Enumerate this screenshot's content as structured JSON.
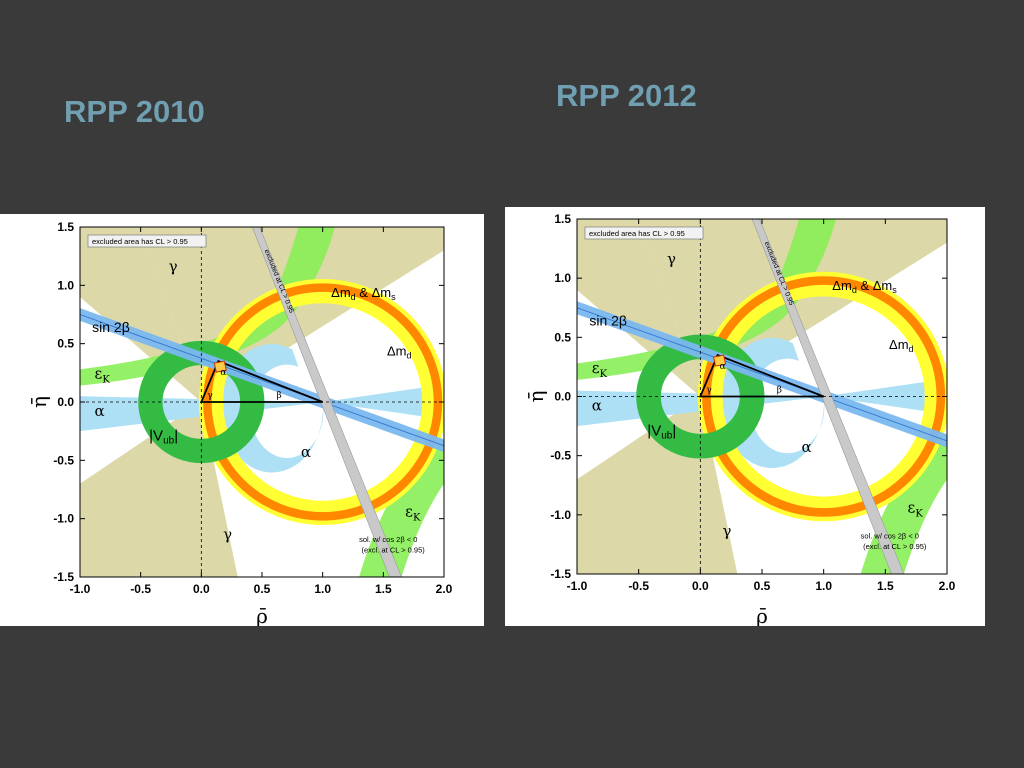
{
  "slide": {
    "background": "#3a3a3a",
    "title_color": "#6f9fb1"
  },
  "plots": [
    {
      "title": "RPP 2010",
      "x_ticks": [
        "-1.0",
        "-0.5",
        "0.0",
        "0.5",
        "1.0",
        "1.5",
        "2.0"
      ],
      "y_ticks": [
        "1.5",
        "1.0",
        "0.5",
        "0.0",
        "-0.5",
        "-1.0",
        "-1.5"
      ],
      "xlabel": "ρ̄",
      "ylabel": "η̄",
      "legend_box": "excluded area has CL > 0.95",
      "labels": {
        "gamma_top": "γ",
        "gamma_bottom": "γ",
        "dmd_dms": "Δm",
        "dmd_dms_sub1": "d",
        "dmd_amp": " & Δm",
        "dmd_dms_sub2": "s",
        "dmd": "Δm",
        "dmd_sub": "d",
        "sin2b": "sin 2β",
        "epsk": "ε",
        "epsk_sub": "K",
        "epsk2": "ε",
        "epsk2_sub": "K",
        "alpha_left": "α",
        "alpha_bottom": "α",
        "vub": "|V",
        "vub_sub": "ub",
        "vub_end": "|",
        "excluded_strip": "excluded at CL > 0.95",
        "sol_line1": "sol. w/ cos 2β < 0",
        "sol_line2": "(excl. at CL > 0.95)",
        "tri_alpha": "α",
        "tri_gamma": "γ",
        "tri_beta": "β"
      }
    },
    {
      "title": "RPP 2012",
      "x_ticks": [
        "-1.0",
        "-0.5",
        "0.0",
        "0.5",
        "1.0",
        "1.5",
        "2.0"
      ],
      "y_ticks": [
        "1.5",
        "1.0",
        "0.5",
        "0.0",
        "-0.5",
        "-1.0",
        "-1.5"
      ],
      "xlabel": "ρ̄",
      "ylabel": "η̄",
      "legend_box": "excluded area has CL > 0.95",
      "labels": {
        "gamma_top": "γ",
        "gamma_bottom": "γ",
        "dmd_dms": "Δm",
        "dmd_dms_sub1": "d",
        "dmd_amp": " & Δm",
        "dmd_dms_sub2": "s",
        "dmd": "Δm",
        "dmd_sub": "d",
        "sin2b": "sin 2β",
        "epsk": "ε",
        "epsk_sub": "K",
        "epsk2": "ε",
        "epsk2_sub": "K",
        "alpha_left": "α",
        "alpha_bottom": "α",
        "vub": "|V",
        "vub_sub": "ub",
        "vub_end": "|",
        "excluded_strip": "excluded at CL > 0.95",
        "sol_line1": "sol. w/ cos 2β < 0",
        "sol_line2": "(excl. at CL > 0.95)",
        "tri_alpha": "α",
        "tri_gamma": "γ",
        "tri_beta": "β"
      }
    }
  ]
}
